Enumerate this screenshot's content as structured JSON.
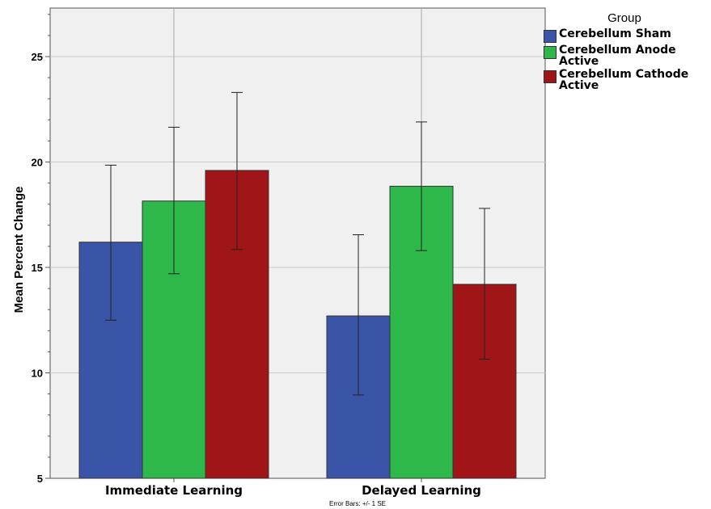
{
  "chart_data": {
    "type": "bar",
    "categories": [
      "Immediate Learning",
      "Delayed Learning"
    ],
    "series": [
      {
        "name": "Cerebellum Sham",
        "color": "#3a55a8",
        "values": [
          16.2,
          12.7
        ],
        "error_low": [
          12.5,
          8.95
        ],
        "error_high": [
          19.85,
          16.55
        ]
      },
      {
        "name": "Cerebellum Anode Active",
        "color": "#2fb84a",
        "values": [
          18.15,
          18.85
        ],
        "error_low": [
          14.7,
          15.8
        ],
        "error_high": [
          21.65,
          21.9
        ]
      },
      {
        "name": "Cerebellum Cathode Active",
        "color": "#a01518",
        "values": [
          19.6,
          14.2
        ],
        "error_low": [
          15.85,
          10.65
        ],
        "error_high": [
          23.3,
          17.8
        ]
      }
    ],
    "ylabel": "Mean Percent Change",
    "xlabel": "",
    "ylim": [
      5,
      27.3
    ],
    "yticks": [
      5,
      10,
      15,
      20,
      25
    ],
    "legend_title": "Group",
    "legend_position": "top-right outside",
    "grid": true,
    "footnote": "Error Bars: +/- 1 SE"
  }
}
